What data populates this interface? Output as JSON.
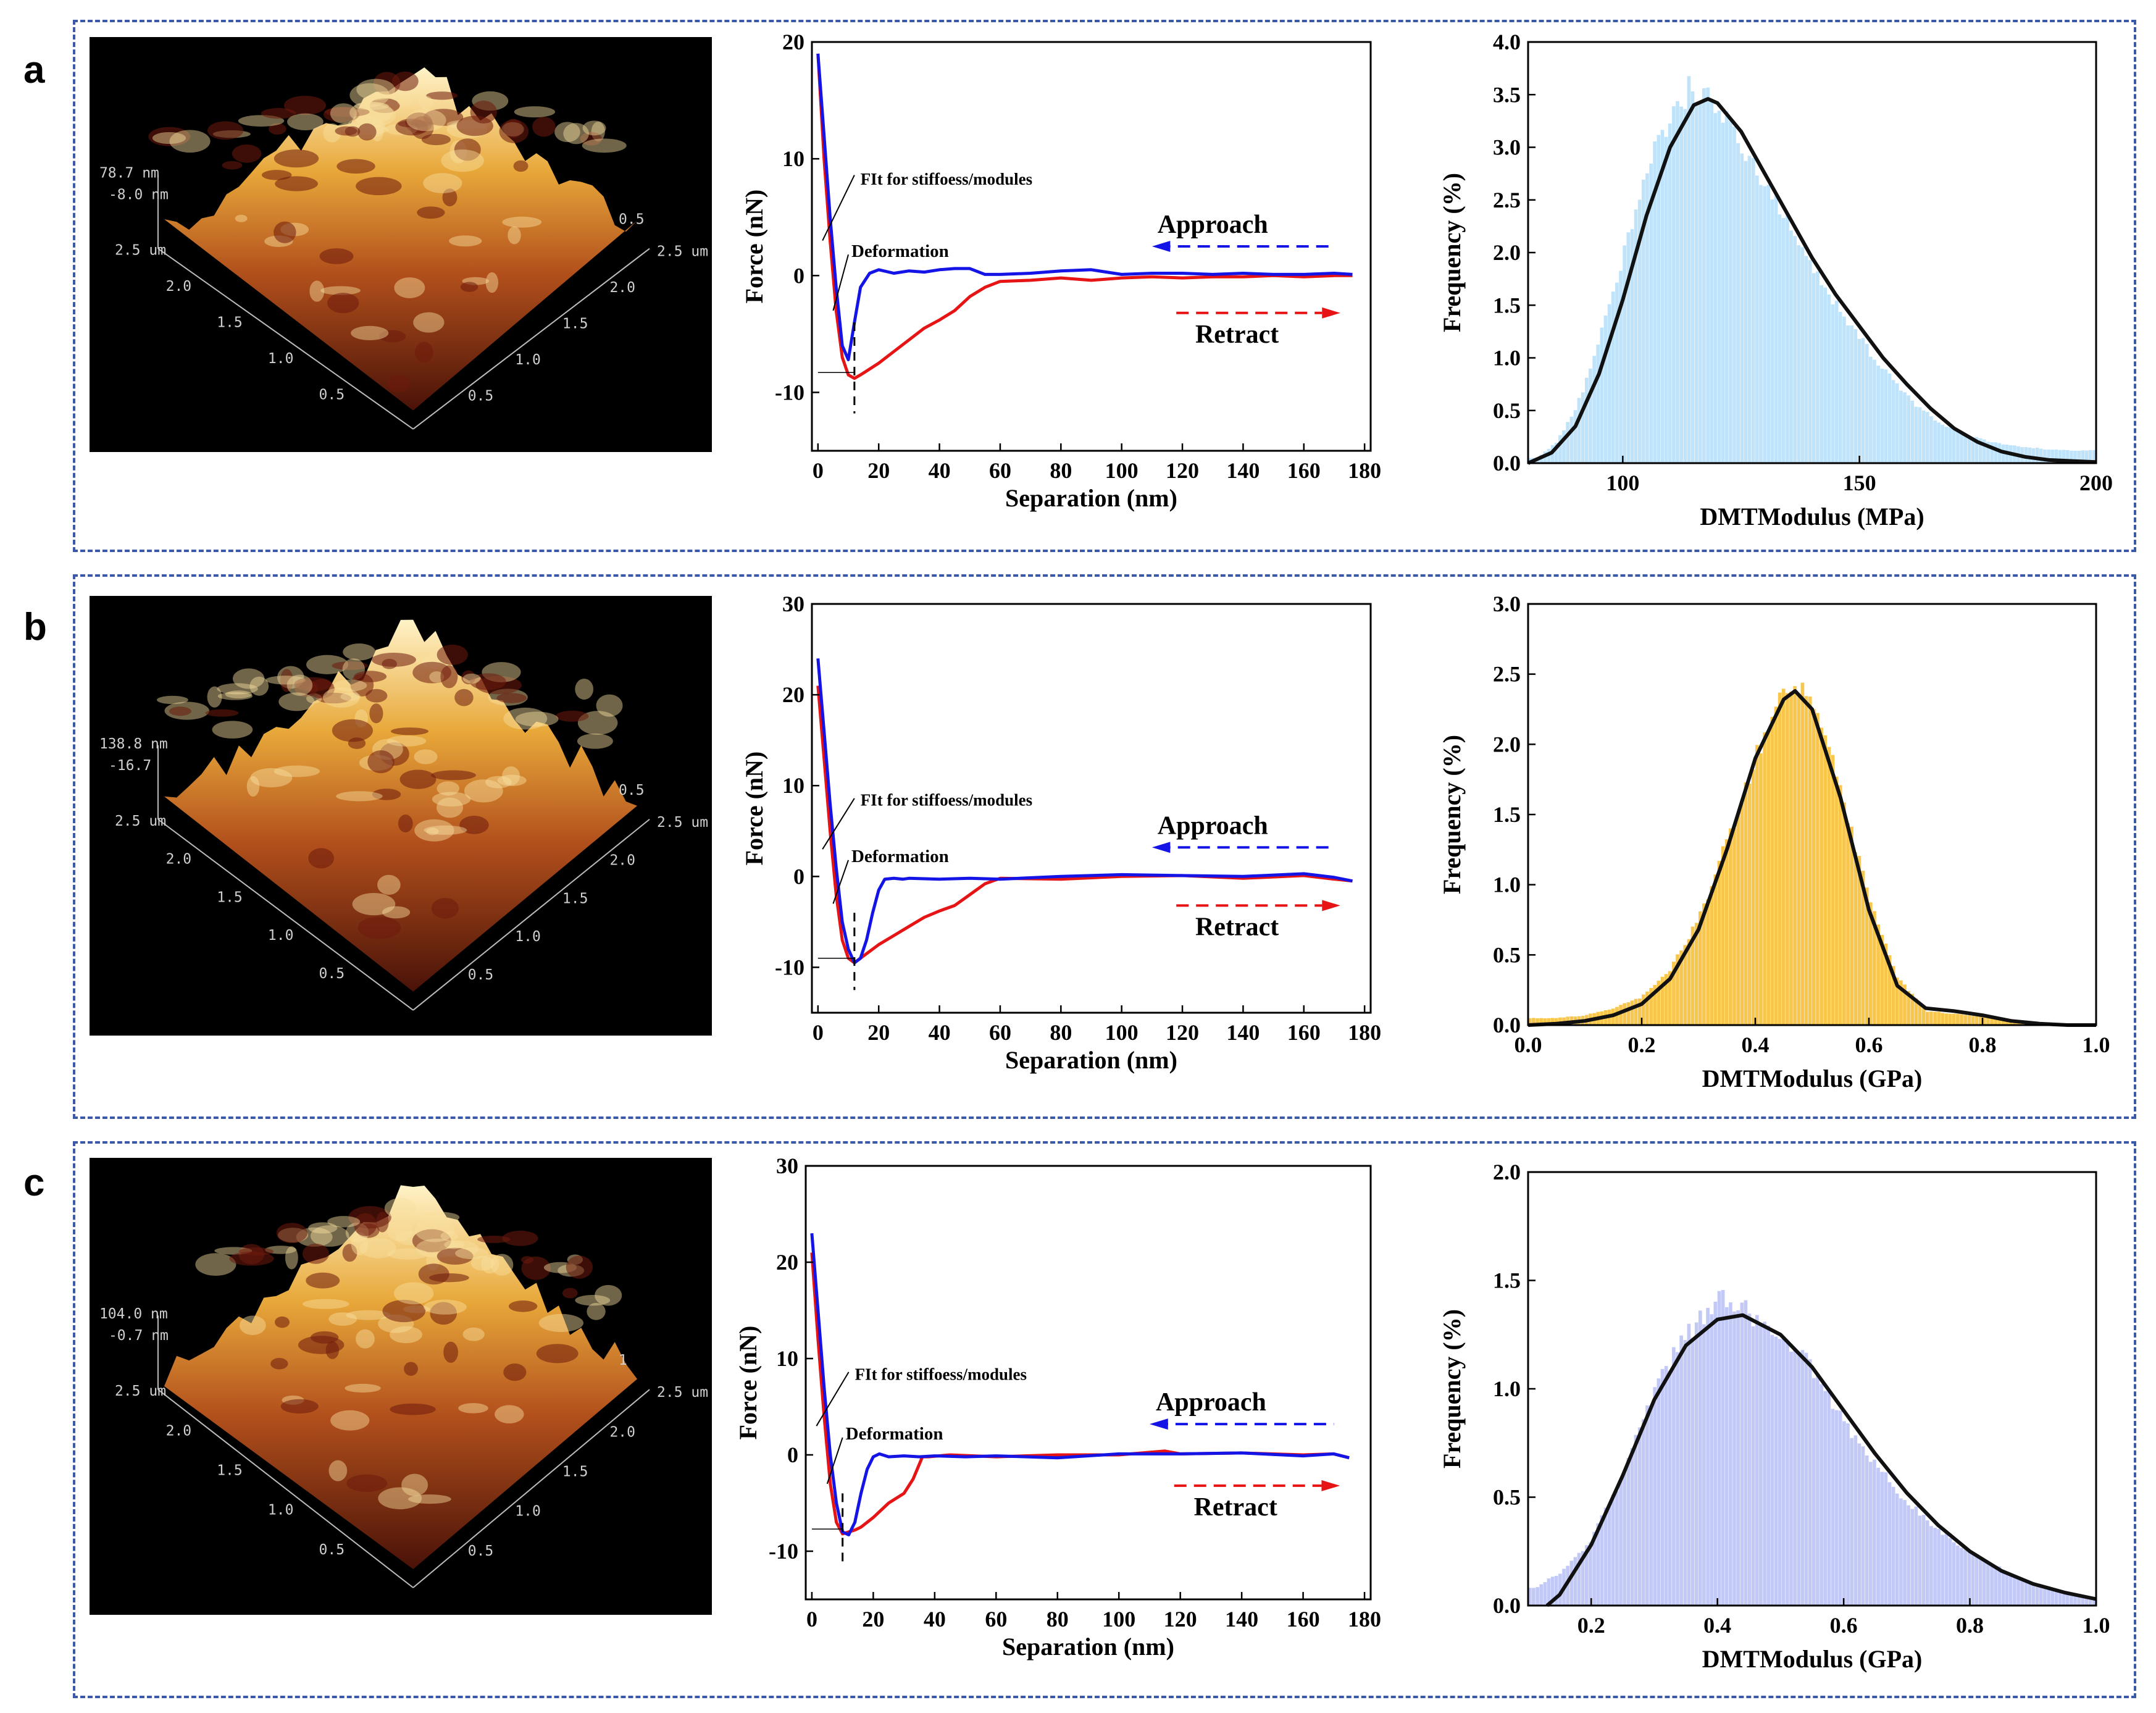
{
  "panels": [
    {
      "letter": "a",
      "afm": {
        "z_max": "78.7 nm",
        "z_min": "-8.0 nm",
        "x_ticks": [
          "0.5",
          "1.0",
          "1.5",
          "2.0",
          "2.5 um"
        ],
        "y_ticks": [
          "0.5",
          "1.0",
          "1.5",
          "2.0",
          "2.5 um"
        ],
        "top_tick": "0.5"
      },
      "force": {
        "xlabel": "Separation (nm)",
        "ylabel": "Force (nN)",
        "xticks": [
          "0",
          "20",
          "40",
          "60",
          "80",
          "100",
          "120",
          "140",
          "160",
          "180"
        ],
        "yticks": [
          "-10",
          "0",
          "10",
          "20"
        ],
        "annotations": {
          "fit": "FIt for stiffoess/modules",
          "deformation": "Deformation",
          "approach": "Approach",
          "retract": "Retract"
        }
      },
      "hist": {
        "xlabel": "DMTModulus (MPa)",
        "ylabel": "Frequency (%)",
        "xticks": [
          "100",
          "150",
          "200"
        ],
        "yticks": [
          "0.0",
          "0.5",
          "1.0",
          "1.5",
          "2.0",
          "2.5",
          "3.0",
          "3.5",
          "4.0"
        ]
      }
    },
    {
      "letter": "b",
      "afm": {
        "z_max": "138.8 nm",
        "z_min": "-16.7",
        "x_ticks": [
          "0.5",
          "1.0",
          "1.5",
          "2.0",
          "2.5 um"
        ],
        "y_ticks": [
          "0.5",
          "1.0",
          "1.5",
          "2.0",
          "2.5 um"
        ],
        "top_tick": "0.5"
      },
      "force": {
        "xlabel": "Separation (nm)",
        "ylabel": "Force (nN)",
        "xticks": [
          "0",
          "20",
          "40",
          "60",
          "80",
          "100",
          "120",
          "140",
          "160",
          "180"
        ],
        "yticks": [
          "-10",
          "0",
          "10",
          "20",
          "30"
        ],
        "annotations": {
          "fit": "FIt for stiffoess/modules",
          "deformation": "Deformation",
          "approach": "Approach",
          "retract": "Retract"
        }
      },
      "hist": {
        "xlabel": "DMTModulus (GPa)",
        "ylabel": "Frequency (%)",
        "xticks": [
          "0.0",
          "0.2",
          "0.4",
          "0.6",
          "0.8",
          "1.0"
        ],
        "yticks": [
          "0.0",
          "0.5",
          "1.0",
          "1.5",
          "2.0",
          "2.5",
          "3.0"
        ]
      }
    },
    {
      "letter": "c",
      "afm": {
        "z_max": "104.0 nm",
        "z_min": "-0.7 nm",
        "x_ticks": [
          "0.5",
          "1.0",
          "1.5",
          "2.0",
          "2.5 um"
        ],
        "y_ticks": [
          "0.5",
          "1.0",
          "1.5",
          "2.0",
          "2.5 um"
        ],
        "top_tick": "1"
      },
      "force": {
        "xlabel": "Separation (nm)",
        "ylabel": "Force (nN)",
        "xticks": [
          "0",
          "20",
          "40",
          "60",
          "80",
          "100",
          "120",
          "140",
          "160",
          "180"
        ],
        "yticks": [
          "-10",
          "0",
          "10",
          "20",
          "30"
        ],
        "annotations": {
          "fit": "FIt for stiffoess/modules",
          "deformation": "Deformation",
          "approach": "Approach",
          "retract": "Retract"
        }
      },
      "hist": {
        "xlabel": "DMTModulus (GPa)",
        "ylabel": "Frequency (%)",
        "xticks": [
          "0.2",
          "0.4",
          "0.6",
          "0.8",
          "1.0"
        ],
        "yticks": [
          "0.0",
          "0.5",
          "1.0",
          "1.5",
          "2.0"
        ]
      }
    }
  ],
  "colors": {
    "approach": "#1414e6",
    "retract": "#e61414",
    "fit_curve": "#111111",
    "hist_a": "#bfe3fa",
    "hist_b": "#f7c64a",
    "hist_c": "#c3c9f6",
    "border": "#3a5aa8"
  },
  "chart_data": [
    {
      "type": "line",
      "panel": "a",
      "xlabel": "Separation (nm)",
      "ylabel": "Force (nN)",
      "xlim": [
        -2,
        182
      ],
      "ylim": [
        -15,
        20
      ],
      "series": [
        {
          "name": "Approach",
          "x": [
            0,
            2,
            4,
            6,
            8,
            10,
            12,
            14,
            17,
            20,
            25,
            30,
            35,
            40,
            45,
            50,
            55,
            60,
            70,
            80,
            90,
            100,
            110,
            120,
            130,
            140,
            150,
            160,
            170,
            176
          ],
          "y": [
            19,
            12,
            5,
            -1,
            -6,
            -7.2,
            -4,
            -1,
            0.2,
            0.5,
            0.2,
            0.4,
            0.3,
            0.5,
            0.6,
            0.6,
            0.1,
            0.1,
            0.2,
            0.4,
            0.5,
            0.1,
            0.2,
            0.2,
            0.1,
            0.2,
            0.1,
            0.1,
            0.2,
            0.1
          ]
        },
        {
          "name": "Retract",
          "x": [
            0,
            2,
            4,
            6,
            8,
            10,
            12,
            14,
            17,
            20,
            25,
            30,
            35,
            40,
            45,
            50,
            55,
            60,
            70,
            80,
            90,
            100,
            110,
            120,
            130,
            140,
            150,
            160,
            170,
            176
          ],
          "y": [
            19,
            10,
            3,
            -3,
            -7,
            -8.5,
            -8.8,
            -8.5,
            -8,
            -7.5,
            -6.5,
            -5.5,
            -4.5,
            -3.8,
            -3,
            -1.8,
            -1,
            -0.5,
            -0.4,
            -0.2,
            -0.4,
            -0.2,
            -0.1,
            -0.2,
            -0.1,
            -0.1,
            0,
            -0.1,
            0,
            0
          ]
        }
      ]
    },
    {
      "type": "bar",
      "panel": "a",
      "xlabel": "DMTModulus (MPa)",
      "ylabel": "Frequency (%)",
      "xlim": [
        80,
        200
      ],
      "ylim": [
        0,
        4
      ],
      "series": [
        {
          "name": "histogram",
          "x": [
            82,
            86,
            90,
            94,
            98,
            102,
            106,
            110,
            114,
            118,
            122,
            126,
            130,
            134,
            138,
            142,
            146,
            150,
            154,
            158,
            162,
            166,
            170,
            174,
            178,
            182,
            186,
            190,
            194,
            198
          ],
          "y": [
            0.05,
            0.2,
            0.5,
            1.0,
            1.6,
            2.3,
            2.9,
            3.3,
            3.55,
            3.5,
            3.25,
            2.95,
            2.65,
            2.35,
            2.05,
            1.75,
            1.45,
            1.2,
            0.95,
            0.75,
            0.55,
            0.42,
            0.32,
            0.25,
            0.2,
            0.17,
            0.15,
            0.13,
            0.12,
            0.12
          ]
        },
        {
          "name": "fit",
          "x": [
            80,
            85,
            90,
            95,
            100,
            105,
            110,
            115,
            118,
            120,
            125,
            130,
            135,
            140,
            145,
            150,
            155,
            160,
            165,
            170,
            175,
            180,
            185,
            190,
            195,
            200
          ],
          "y": [
            0.0,
            0.1,
            0.35,
            0.85,
            1.55,
            2.35,
            3.0,
            3.4,
            3.46,
            3.42,
            3.15,
            2.75,
            2.35,
            1.95,
            1.6,
            1.3,
            1.0,
            0.75,
            0.52,
            0.33,
            0.2,
            0.11,
            0.06,
            0.03,
            0.02,
            0.01
          ]
        }
      ]
    },
    {
      "type": "line",
      "panel": "b",
      "xlabel": "Separation (nm)",
      "ylabel": "Force (nN)",
      "xlim": [
        -2,
        182
      ],
      "ylim": [
        -15,
        30
      ],
      "series": [
        {
          "name": "Approach",
          "x": [
            0,
            2,
            4,
            6,
            8,
            10,
            12,
            14,
            16,
            18,
            20,
            22,
            25,
            28,
            30,
            40,
            50,
            60,
            80,
            100,
            120,
            140,
            160,
            170,
            176
          ],
          "y": [
            24,
            16,
            8,
            1,
            -5,
            -8,
            -9.5,
            -9,
            -7,
            -4,
            -1.5,
            -0.3,
            -0.2,
            -0.3,
            -0.2,
            -0.3,
            -0.2,
            -0.3,
            0,
            0.2,
            0.1,
            0,
            0.3,
            -0.1,
            -0.5
          ]
        },
        {
          "name": "Retract",
          "x": [
            0,
            2,
            4,
            6,
            8,
            10,
            12,
            14,
            16,
            20,
            25,
            30,
            35,
            40,
            45,
            50,
            55,
            60,
            80,
            100,
            120,
            140,
            160,
            170,
            176
          ],
          "y": [
            21,
            13,
            5,
            -2,
            -7,
            -9,
            -9.5,
            -9,
            -8.5,
            -7.5,
            -6.5,
            -5.5,
            -4.5,
            -3.8,
            -3.2,
            -2,
            -0.8,
            -0.2,
            -0.3,
            0,
            0.1,
            -0.2,
            0.1,
            -0.3,
            -0.5
          ]
        }
      ]
    },
    {
      "type": "bar",
      "panel": "b",
      "xlabel": "DMTModulus (GPa)",
      "ylabel": "Frequency (%)",
      "xlim": [
        0,
        1
      ],
      "ylim": [
        0,
        3
      ],
      "series": [
        {
          "name": "histogram",
          "x": [
            0.01,
            0.05,
            0.1,
            0.15,
            0.2,
            0.25,
            0.3,
            0.35,
            0.4,
            0.45,
            0.475,
            0.5,
            0.55,
            0.6,
            0.65,
            0.7,
            0.75,
            0.8,
            0.85,
            0.9,
            0.95,
            0.99
          ],
          "y": [
            0.05,
            0.05,
            0.07,
            0.12,
            0.2,
            0.4,
            0.75,
            1.3,
            1.9,
            2.35,
            2.45,
            2.3,
            1.7,
            0.9,
            0.35,
            0.1,
            0.08,
            0.06,
            0.03,
            0.02,
            0.01,
            0.01
          ]
        },
        {
          "name": "fit",
          "x": [
            0.0,
            0.05,
            0.1,
            0.15,
            0.2,
            0.25,
            0.3,
            0.35,
            0.4,
            0.45,
            0.47,
            0.5,
            0.55,
            0.6,
            0.65,
            0.7,
            0.75,
            0.8,
            0.85,
            0.9,
            0.95,
            1.0
          ],
          "y": [
            0.0,
            0.01,
            0.03,
            0.07,
            0.15,
            0.33,
            0.68,
            1.25,
            1.9,
            2.32,
            2.38,
            2.25,
            1.62,
            0.82,
            0.28,
            0.12,
            0.1,
            0.07,
            0.03,
            0.01,
            0.0,
            0.0
          ]
        }
      ]
    },
    {
      "type": "line",
      "panel": "c",
      "xlabel": "Separation (nm)",
      "ylabel": "Force (nN)",
      "xlim": [
        -2,
        182
      ],
      "ylim": [
        -15,
        30
      ],
      "series": [
        {
          "name": "Approach",
          "x": [
            0,
            2,
            4,
            6,
            8,
            10,
            12,
            14,
            16,
            18,
            20,
            22,
            25,
            30,
            35,
            40,
            50,
            60,
            80,
            100,
            120,
            140,
            160,
            170,
            175
          ],
          "y": [
            23,
            15,
            7,
            0,
            -5,
            -8,
            -8.3,
            -7,
            -4,
            -1.5,
            -0.2,
            0.1,
            -0.2,
            -0.1,
            -0.2,
            -0.1,
            -0.2,
            -0.1,
            -0.3,
            0.1,
            0.1,
            0.2,
            -0.1,
            0.1,
            -0.3
          ]
        },
        {
          "name": "Retract",
          "x": [
            0,
            2,
            4,
            6,
            8,
            10,
            12,
            14,
            16,
            20,
            25,
            30,
            33,
            36,
            38,
            45,
            60,
            80,
            100,
            115,
            120,
            140,
            160,
            170,
            175
          ],
          "y": [
            21,
            12,
            4,
            -3,
            -7,
            -8.2,
            -8,
            -7.8,
            -7.5,
            -6.5,
            -5,
            -4,
            -2.5,
            -0.2,
            -0.2,
            0,
            -0.2,
            0,
            0,
            0.4,
            0.1,
            0.2,
            0,
            0.1,
            -0.3
          ]
        }
      ]
    },
    {
      "type": "bar",
      "panel": "c",
      "xlabel": "DMTModulus (GPa)",
      "ylabel": "Frequency (%)",
      "xlim": [
        0.1,
        1.0
      ],
      "ylim": [
        0,
        2
      ],
      "series": [
        {
          "name": "histogram",
          "x": [
            0.11,
            0.15,
            0.2,
            0.25,
            0.3,
            0.35,
            0.4,
            0.42,
            0.45,
            0.5,
            0.55,
            0.6,
            0.65,
            0.7,
            0.75,
            0.8,
            0.85,
            0.9,
            0.95,
            0.99
          ],
          "y": [
            0.08,
            0.15,
            0.3,
            0.6,
            1.0,
            1.25,
            1.4,
            1.43,
            1.35,
            1.25,
            1.1,
            0.85,
            0.65,
            0.48,
            0.35,
            0.25,
            0.17,
            0.1,
            0.06,
            0.04
          ]
        },
        {
          "name": "fit",
          "x": [
            0.13,
            0.15,
            0.2,
            0.25,
            0.3,
            0.35,
            0.4,
            0.44,
            0.5,
            0.55,
            0.6,
            0.65,
            0.7,
            0.75,
            0.8,
            0.85,
            0.9,
            0.95,
            1.0
          ],
          "y": [
            0.0,
            0.05,
            0.28,
            0.6,
            0.95,
            1.2,
            1.32,
            1.34,
            1.25,
            1.1,
            0.9,
            0.7,
            0.52,
            0.37,
            0.25,
            0.16,
            0.1,
            0.06,
            0.03
          ]
        }
      ]
    }
  ]
}
